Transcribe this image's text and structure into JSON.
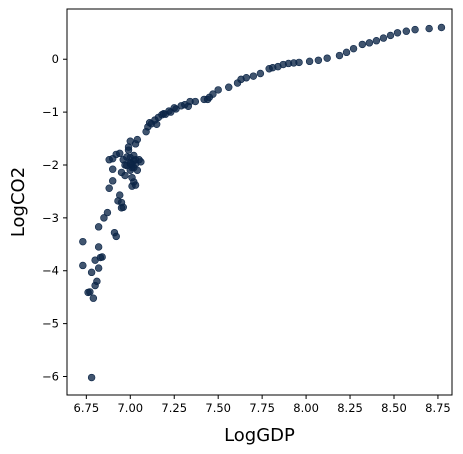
{
  "chart_data": {
    "type": "scatter",
    "title": "",
    "xlabel": "LogGDP",
    "ylabel": "LogCO2",
    "xlim": [
      6.64,
      8.83
    ],
    "ylim": [
      -6.35,
      0.95
    ],
    "xticks": [
      6.75,
      7.0,
      7.25,
      7.5,
      7.75,
      8.0,
      8.25,
      8.5,
      8.75
    ],
    "xtick_labels": [
      "6.75",
      "7.00",
      "7.25",
      "7.50",
      "7.75",
      "8.00",
      "8.25",
      "8.50",
      "8.75"
    ],
    "yticks": [
      0,
      -1,
      -2,
      -3,
      -4,
      -5,
      -6
    ],
    "ytick_labels": [
      "0",
      "−1",
      "−2",
      "−3",
      "−4",
      "−5",
      "−6"
    ],
    "grid": false,
    "legend": "none",
    "marker_color": "#0b2547",
    "series": [
      {
        "points": [
          [
            6.78,
            -6.02
          ],
          [
            6.79,
            -4.52
          ],
          [
            6.77,
            -4.4
          ],
          [
            6.76,
            -4.41
          ],
          [
            6.8,
            -4.28
          ],
          [
            6.81,
            -4.2
          ],
          [
            6.78,
            -4.03
          ],
          [
            6.73,
            -3.9
          ],
          [
            6.82,
            -3.95
          ],
          [
            6.8,
            -3.8
          ],
          [
            6.83,
            -3.75
          ],
          [
            6.84,
            -3.74
          ],
          [
            6.82,
            -3.55
          ],
          [
            6.73,
            -3.45
          ],
          [
            6.82,
            -3.17
          ],
          [
            6.85,
            -3.0
          ],
          [
            6.87,
            -2.9
          ],
          [
            6.91,
            -3.28
          ],
          [
            6.92,
            -3.35
          ],
          [
            6.93,
            -2.68
          ],
          [
            6.95,
            -2.71
          ],
          [
            6.95,
            -2.81
          ],
          [
            6.96,
            -2.8
          ],
          [
            6.94,
            -2.57
          ],
          [
            6.88,
            -2.44
          ],
          [
            6.9,
            -2.3
          ],
          [
            6.9,
            -2.08
          ],
          [
            6.95,
            -2.14
          ],
          [
            6.97,
            -2.2
          ],
          [
            6.88,
            -1.9
          ],
          [
            6.9,
            -1.88
          ],
          [
            6.92,
            -1.8
          ],
          [
            6.94,
            -1.78
          ],
          [
            6.96,
            -1.9
          ],
          [
            6.97,
            -2.0
          ],
          [
            6.98,
            -1.85
          ],
          [
            6.99,
            -1.72
          ],
          [
            7.0,
            -1.86
          ],
          [
            7.0,
            -1.95
          ],
          [
            7.01,
            -2.05
          ],
          [
            7.02,
            -1.92
          ],
          [
            7.0,
            -2.1
          ],
          [
            7.01,
            -2.24
          ],
          [
            7.02,
            -2.32
          ],
          [
            7.03,
            -2.38
          ],
          [
            7.04,
            -2.1
          ],
          [
            7.02,
            -1.82
          ],
          [
            7.03,
            -1.98
          ],
          [
            6.99,
            -1.66
          ],
          [
            7.0,
            -1.55
          ],
          [
            7.03,
            -1.6
          ],
          [
            7.04,
            -1.52
          ],
          [
            7.05,
            -1.9
          ],
          [
            7.06,
            -1.94
          ],
          [
            7.01,
            -2.4
          ],
          [
            7.01,
            -2.0
          ],
          [
            7.02,
            -2.05
          ],
          [
            6.98,
            -2.01
          ],
          [
            7.03,
            -1.9
          ],
          [
            7.0,
            -1.98
          ],
          [
            7.09,
            -1.37
          ],
          [
            7.1,
            -1.28
          ],
          [
            7.11,
            -1.2
          ],
          [
            7.12,
            -1.22
          ],
          [
            7.14,
            -1.15
          ],
          [
            7.15,
            -1.23
          ],
          [
            7.16,
            -1.1
          ],
          [
            7.18,
            -1.05
          ],
          [
            7.19,
            -1.03
          ],
          [
            7.2,
            -1.04
          ],
          [
            7.22,
            -0.98
          ],
          [
            7.23,
            -1.0
          ],
          [
            7.25,
            -0.92
          ],
          [
            7.26,
            -0.94
          ],
          [
            7.29,
            -0.88
          ],
          [
            7.31,
            -0.86
          ],
          [
            7.33,
            -0.89
          ],
          [
            7.34,
            -0.8
          ],
          [
            7.37,
            -0.8
          ],
          [
            7.42,
            -0.76
          ],
          [
            7.45,
            -0.72
          ],
          [
            7.44,
            -0.76
          ],
          [
            7.47,
            -0.66
          ],
          [
            7.5,
            -0.58
          ],
          [
            7.56,
            -0.53
          ],
          [
            7.61,
            -0.45
          ],
          [
            7.63,
            -0.38
          ],
          [
            7.66,
            -0.35
          ],
          [
            7.7,
            -0.32
          ],
          [
            7.74,
            -0.27
          ],
          [
            7.79,
            -0.18
          ],
          [
            7.81,
            -0.16
          ],
          [
            7.84,
            -0.14
          ],
          [
            7.87,
            -0.1
          ],
          [
            7.9,
            -0.08
          ],
          [
            7.93,
            -0.07
          ],
          [
            7.96,
            -0.06
          ],
          [
            8.02,
            -0.04
          ],
          [
            8.07,
            -0.02
          ],
          [
            8.12,
            0.02
          ],
          [
            8.19,
            0.07
          ],
          [
            8.23,
            0.13
          ],
          [
            8.27,
            0.2
          ],
          [
            8.32,
            0.28
          ],
          [
            8.36,
            0.31
          ],
          [
            8.4,
            0.35
          ],
          [
            8.44,
            0.4
          ],
          [
            8.48,
            0.45
          ],
          [
            8.52,
            0.5
          ],
          [
            8.57,
            0.53
          ],
          [
            8.62,
            0.56
          ],
          [
            8.7,
            0.58
          ],
          [
            8.77,
            0.6
          ]
        ]
      }
    ]
  }
}
